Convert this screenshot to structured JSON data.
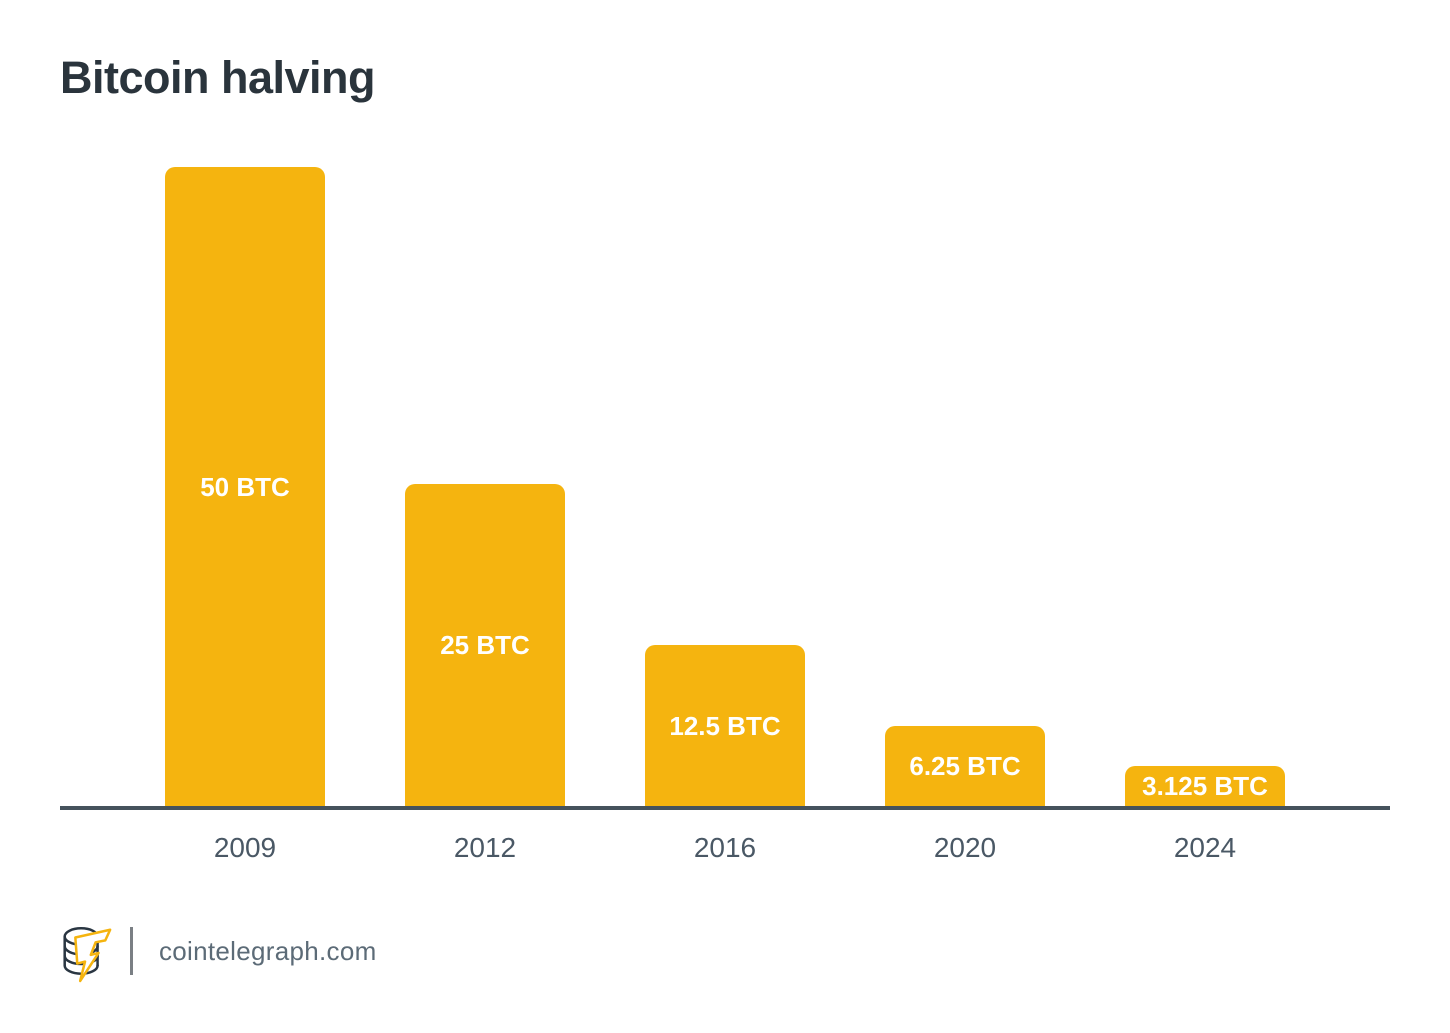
{
  "title": "Bitcoin halving",
  "footer": {
    "site": "cointelegraph.com",
    "logo_icon": "cointelegraph-coin-bolt-logo"
  },
  "colors": {
    "background": "#FFFFFF",
    "bar": "#F5B40F",
    "bar_label": "#FFFFFF",
    "title": "#2A343C",
    "axis_line": "#45525C",
    "year_label": "#4A5865",
    "footer_text": "#5C6B77",
    "logo_navy": "#2A3642",
    "logo_yellow": "#F5B40F"
  },
  "chart_data": {
    "type": "bar",
    "title": "Bitcoin halving",
    "categories": [
      "2009",
      "2012",
      "2016",
      "2020",
      "2024"
    ],
    "values": [
      50,
      25,
      12.5,
      6.25,
      3.125
    ],
    "bar_labels": [
      "50 BTC",
      "25 BTC",
      "12.5 BTC",
      "6.25 BTC",
      "3.125 BTC"
    ],
    "xlabel": "",
    "ylabel": "",
    "ylim": [
      0,
      50
    ],
    "grid": false,
    "legend": null,
    "bar_label_position": "inside-center",
    "axis_shown": [
      "x"
    ]
  }
}
